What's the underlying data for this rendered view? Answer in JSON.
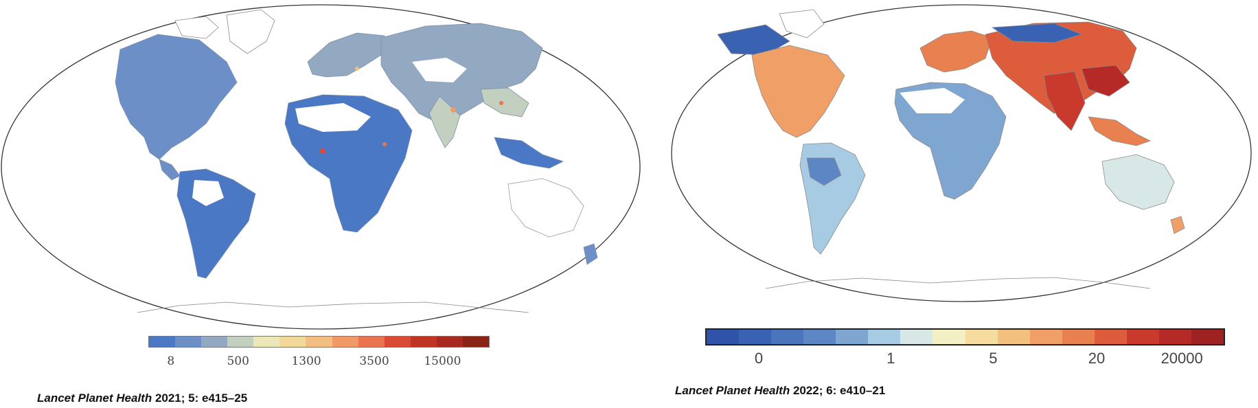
{
  "maps": [
    {
      "id": "left",
      "legend": {
        "colors": [
          "#4a78c4",
          "#6d8fc8",
          "#93a9c2",
          "#c3cfbf",
          "#ece7b6",
          "#f2d99a",
          "#f4bd82",
          "#f19a68",
          "#e9744f",
          "#d94a35",
          "#c03424",
          "#a82a1f",
          "#8a2216"
        ],
        "ticks": [
          {
            "label": "8",
            "fraction": 0.066
          },
          {
            "label": "500",
            "fraction": 0.263
          },
          {
            "label": "1300",
            "fraction": 0.463
          },
          {
            "label": "3500",
            "fraction": 0.662
          },
          {
            "label": "15000",
            "fraction": 0.862
          }
        ]
      },
      "citation": {
        "journal": "Lancet Planet Health",
        "details": " 2021; 5: e415–25"
      }
    },
    {
      "id": "right",
      "legend": {
        "colors": [
          "#2e53a8",
          "#3a62b2",
          "#4a74bc",
          "#5d86c4",
          "#7ea6d0",
          "#a7cbe2",
          "#d8e8e6",
          "#f3f0c6",
          "#f6dc9e",
          "#f4c07e",
          "#f0a066",
          "#e8804f",
          "#dc5c3c",
          "#c93a2c",
          "#b52a26",
          "#9e2222"
        ],
        "ticks": [
          {
            "label": "0",
            "fraction": 0.103
          },
          {
            "label": "1",
            "fraction": 0.357
          },
          {
            "label": "5",
            "fraction": 0.554
          },
          {
            "label": "20",
            "fraction": 0.753
          },
          {
            "label": "20000",
            "fraction": 0.917
          }
        ]
      },
      "citation": {
        "journal": "Lancet Planet Health",
        "details": " 2022; 6: e410–21"
      }
    }
  ]
}
